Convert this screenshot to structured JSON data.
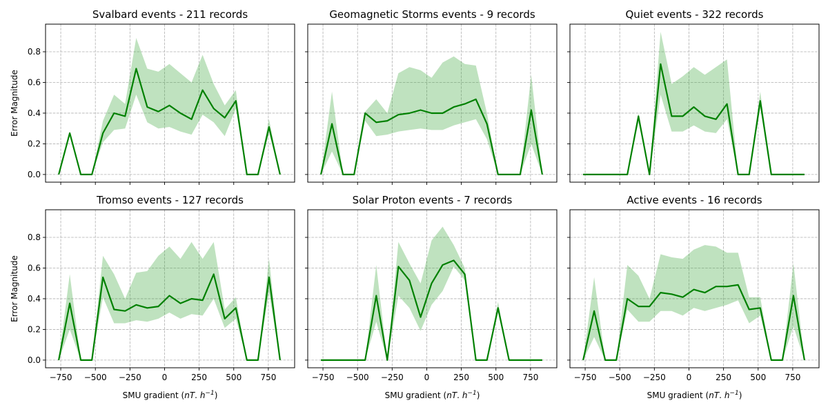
{
  "chart_data": [
    {
      "type": "area",
      "title": "Svalbard events - 211 records",
      "xlabel": "",
      "ylabel": "Error Magnitude",
      "xlim": [
        -860,
        940
      ],
      "ylim": [
        -0.05,
        0.98
      ],
      "xticks": [
        -750,
        -500,
        -250,
        0,
        250,
        500,
        750
      ],
      "yticks": [
        0.0,
        0.2,
        0.4,
        0.6,
        0.8
      ],
      "show_xtick_labels": false,
      "show_ytick_labels": true,
      "grid": true,
      "color": "#008000",
      "x": [
        -765,
        -685,
        -605,
        -525,
        -445,
        -365,
        -285,
        -205,
        -125,
        -45,
        35,
        115,
        195,
        275,
        355,
        435,
        515,
        595,
        675,
        755,
        835
      ],
      "mean": [
        0.0,
        0.27,
        0.0,
        0.0,
        0.27,
        0.4,
        0.38,
        0.69,
        0.44,
        0.41,
        0.45,
        0.4,
        0.36,
        0.55,
        0.43,
        0.37,
        0.48,
        0.0,
        0.0,
        0.31,
        0.0
      ],
      "upper": [
        0.0,
        0.27,
        0.0,
        0.0,
        0.35,
        0.52,
        0.46,
        0.89,
        0.69,
        0.67,
        0.72,
        0.66,
        0.6,
        0.78,
        0.59,
        0.45,
        0.55,
        0.0,
        0.0,
        0.36,
        0.0
      ],
      "lower": [
        0.0,
        0.27,
        0.0,
        0.0,
        0.21,
        0.29,
        0.3,
        0.52,
        0.34,
        0.3,
        0.31,
        0.28,
        0.26,
        0.39,
        0.34,
        0.25,
        0.43,
        0.0,
        0.0,
        0.27,
        0.0
      ]
    },
    {
      "type": "area",
      "title": "Geomagnetic Storms events - 9 records",
      "xlabel": "",
      "ylabel": "",
      "xlim": [
        -860,
        940
      ],
      "ylim": [
        -0.05,
        0.98
      ],
      "xticks": [
        -750,
        -500,
        -250,
        0,
        250,
        500,
        750
      ],
      "yticks": [
        0.0,
        0.2,
        0.4,
        0.6,
        0.8
      ],
      "show_xtick_labels": false,
      "show_ytick_labels": false,
      "grid": true,
      "color": "#008000",
      "x": [
        -765,
        -685,
        -605,
        -525,
        -445,
        -365,
        -285,
        -205,
        -125,
        -45,
        35,
        115,
        195,
        275,
        355,
        435,
        515,
        595,
        675,
        755,
        835
      ],
      "mean": [
        0.0,
        0.33,
        0.0,
        0.0,
        0.4,
        0.34,
        0.35,
        0.39,
        0.4,
        0.42,
        0.4,
        0.4,
        0.44,
        0.46,
        0.49,
        0.33,
        0.0,
        0.0,
        0.0,
        0.42,
        0.0
      ],
      "upper": [
        0.0,
        0.54,
        0.0,
        0.0,
        0.41,
        0.49,
        0.4,
        0.66,
        0.7,
        0.68,
        0.63,
        0.73,
        0.77,
        0.72,
        0.71,
        0.4,
        0.0,
        0.0,
        0.0,
        0.65,
        0.0
      ],
      "lower": [
        0.0,
        0.15,
        0.0,
        0.0,
        0.35,
        0.25,
        0.26,
        0.28,
        0.29,
        0.3,
        0.29,
        0.29,
        0.32,
        0.34,
        0.36,
        0.23,
        0.0,
        0.0,
        0.0,
        0.2,
        0.0
      ]
    },
    {
      "type": "area",
      "title": "Quiet events - 322 records",
      "xlabel": "",
      "ylabel": "",
      "xlim": [
        -860,
        940
      ],
      "ylim": [
        -0.05,
        0.98
      ],
      "xticks": [
        -750,
        -500,
        -250,
        0,
        250,
        500,
        750
      ],
      "yticks": [
        0.0,
        0.2,
        0.4,
        0.6,
        0.8
      ],
      "show_xtick_labels": false,
      "show_ytick_labels": false,
      "grid": true,
      "color": "#008000",
      "x": [
        -765,
        -685,
        -605,
        -525,
        -445,
        -365,
        -285,
        -205,
        -125,
        -45,
        35,
        115,
        195,
        275,
        355,
        435,
        515,
        595,
        675,
        755,
        835
      ],
      "mean": [
        0.0,
        0.0,
        0.0,
        0.0,
        0.0,
        0.38,
        0.0,
        0.72,
        0.38,
        0.38,
        0.44,
        0.38,
        0.36,
        0.46,
        0.0,
        0.0,
        0.48,
        0.0,
        0.0,
        0.0,
        0.0
      ],
      "upper": [
        0.0,
        0.0,
        0.0,
        0.0,
        0.0,
        0.4,
        0.0,
        0.93,
        0.59,
        0.64,
        0.7,
        0.65,
        0.7,
        0.75,
        0.0,
        0.0,
        0.54,
        0.0,
        0.0,
        0.0,
        0.0
      ],
      "lower": [
        0.0,
        0.0,
        0.0,
        0.0,
        0.0,
        0.34,
        0.0,
        0.52,
        0.28,
        0.28,
        0.32,
        0.28,
        0.27,
        0.36,
        0.0,
        0.0,
        0.43,
        0.0,
        0.0,
        0.0,
        0.0
      ]
    },
    {
      "type": "area",
      "title": "Tromso events - 127 records",
      "xlabel": "SMU gradient",
      "ylabel": "Error Magnitude",
      "xlim": [
        -860,
        940
      ],
      "ylim": [
        -0.05,
        0.98
      ],
      "xticks": [
        -750,
        -500,
        -250,
        0,
        250,
        500,
        750
      ],
      "yticks": [
        0.0,
        0.2,
        0.4,
        0.6,
        0.8
      ],
      "show_xtick_labels": true,
      "show_ytick_labels": true,
      "grid": true,
      "color": "#008000",
      "x": [
        -765,
        -685,
        -605,
        -525,
        -445,
        -365,
        -285,
        -205,
        -125,
        -45,
        35,
        115,
        195,
        275,
        355,
        435,
        515,
        595,
        675,
        755,
        835
      ],
      "mean": [
        0.0,
        0.37,
        0.0,
        0.0,
        0.54,
        0.33,
        0.32,
        0.36,
        0.34,
        0.35,
        0.42,
        0.37,
        0.4,
        0.39,
        0.56,
        0.27,
        0.34,
        0.0,
        0.0,
        0.54,
        0.0
      ],
      "upper": [
        0.0,
        0.56,
        0.0,
        0.0,
        0.68,
        0.56,
        0.4,
        0.57,
        0.58,
        0.68,
        0.74,
        0.66,
        0.77,
        0.66,
        0.77,
        0.33,
        0.41,
        0.0,
        0.0,
        0.66,
        0.0
      ],
      "lower": [
        0.0,
        0.2,
        0.0,
        0.0,
        0.41,
        0.24,
        0.24,
        0.26,
        0.25,
        0.27,
        0.31,
        0.27,
        0.3,
        0.29,
        0.4,
        0.21,
        0.27,
        0.0,
        0.0,
        0.44,
        0.0
      ]
    },
    {
      "type": "area",
      "title": "Solar Proton events - 7 records",
      "xlabel": "SMU gradient",
      "ylabel": "",
      "xlim": [
        -860,
        940
      ],
      "ylim": [
        -0.05,
        0.98
      ],
      "xticks": [
        -750,
        -500,
        -250,
        0,
        250,
        500,
        750
      ],
      "yticks": [
        0.0,
        0.2,
        0.4,
        0.6,
        0.8
      ],
      "show_xtick_labels": true,
      "show_ytick_labels": false,
      "grid": true,
      "color": "#008000",
      "x": [
        -765,
        -685,
        -605,
        -525,
        -445,
        -365,
        -285,
        -205,
        -125,
        -45,
        35,
        115,
        195,
        275,
        355,
        435,
        515,
        595,
        675,
        755,
        835
      ],
      "mean": [
        0.0,
        0.0,
        0.0,
        0.0,
        0.0,
        0.42,
        0.0,
        0.61,
        0.52,
        0.28,
        0.5,
        0.62,
        0.65,
        0.56,
        0.0,
        0.0,
        0.34,
        0.0,
        0.0,
        0.0,
        0.0
      ],
      "upper": [
        0.0,
        0.0,
        0.0,
        0.0,
        0.0,
        0.62,
        0.0,
        0.77,
        0.63,
        0.5,
        0.78,
        0.87,
        0.75,
        0.6,
        0.0,
        0.0,
        0.38,
        0.0,
        0.0,
        0.0,
        0.0
      ],
      "lower": [
        0.0,
        0.0,
        0.0,
        0.0,
        0.0,
        0.25,
        0.0,
        0.42,
        0.34,
        0.19,
        0.36,
        0.45,
        0.61,
        0.52,
        0.0,
        0.0,
        0.31,
        0.0,
        0.0,
        0.0,
        0.0
      ]
    },
    {
      "type": "area",
      "title": "Active events - 16 records",
      "xlabel": "SMU gradient",
      "ylabel": "",
      "xlim": [
        -860,
        940
      ],
      "ylim": [
        -0.05,
        0.98
      ],
      "xticks": [
        -750,
        -500,
        -250,
        0,
        250,
        500,
        750
      ],
      "yticks": [
        0.0,
        0.2,
        0.4,
        0.6,
        0.8
      ],
      "show_xtick_labels": true,
      "show_ytick_labels": false,
      "grid": true,
      "color": "#008000",
      "x": [
        -765,
        -685,
        -605,
        -525,
        -445,
        -365,
        -285,
        -205,
        -125,
        -45,
        35,
        115,
        195,
        275,
        355,
        435,
        515,
        595,
        675,
        755,
        835
      ],
      "mean": [
        0.0,
        0.32,
        0.0,
        0.0,
        0.4,
        0.35,
        0.35,
        0.44,
        0.43,
        0.41,
        0.46,
        0.44,
        0.48,
        0.48,
        0.49,
        0.33,
        0.34,
        0.0,
        0.0,
        0.42,
        0.0
      ],
      "upper": [
        0.0,
        0.54,
        0.0,
        0.0,
        0.62,
        0.55,
        0.4,
        0.69,
        0.67,
        0.66,
        0.72,
        0.75,
        0.74,
        0.7,
        0.7,
        0.41,
        0.41,
        0.0,
        0.0,
        0.63,
        0.0
      ],
      "lower": [
        0.0,
        0.15,
        0.0,
        0.0,
        0.33,
        0.25,
        0.25,
        0.32,
        0.32,
        0.29,
        0.34,
        0.32,
        0.34,
        0.36,
        0.39,
        0.24,
        0.29,
        0.0,
        0.0,
        0.22,
        0.0
      ]
    }
  ]
}
